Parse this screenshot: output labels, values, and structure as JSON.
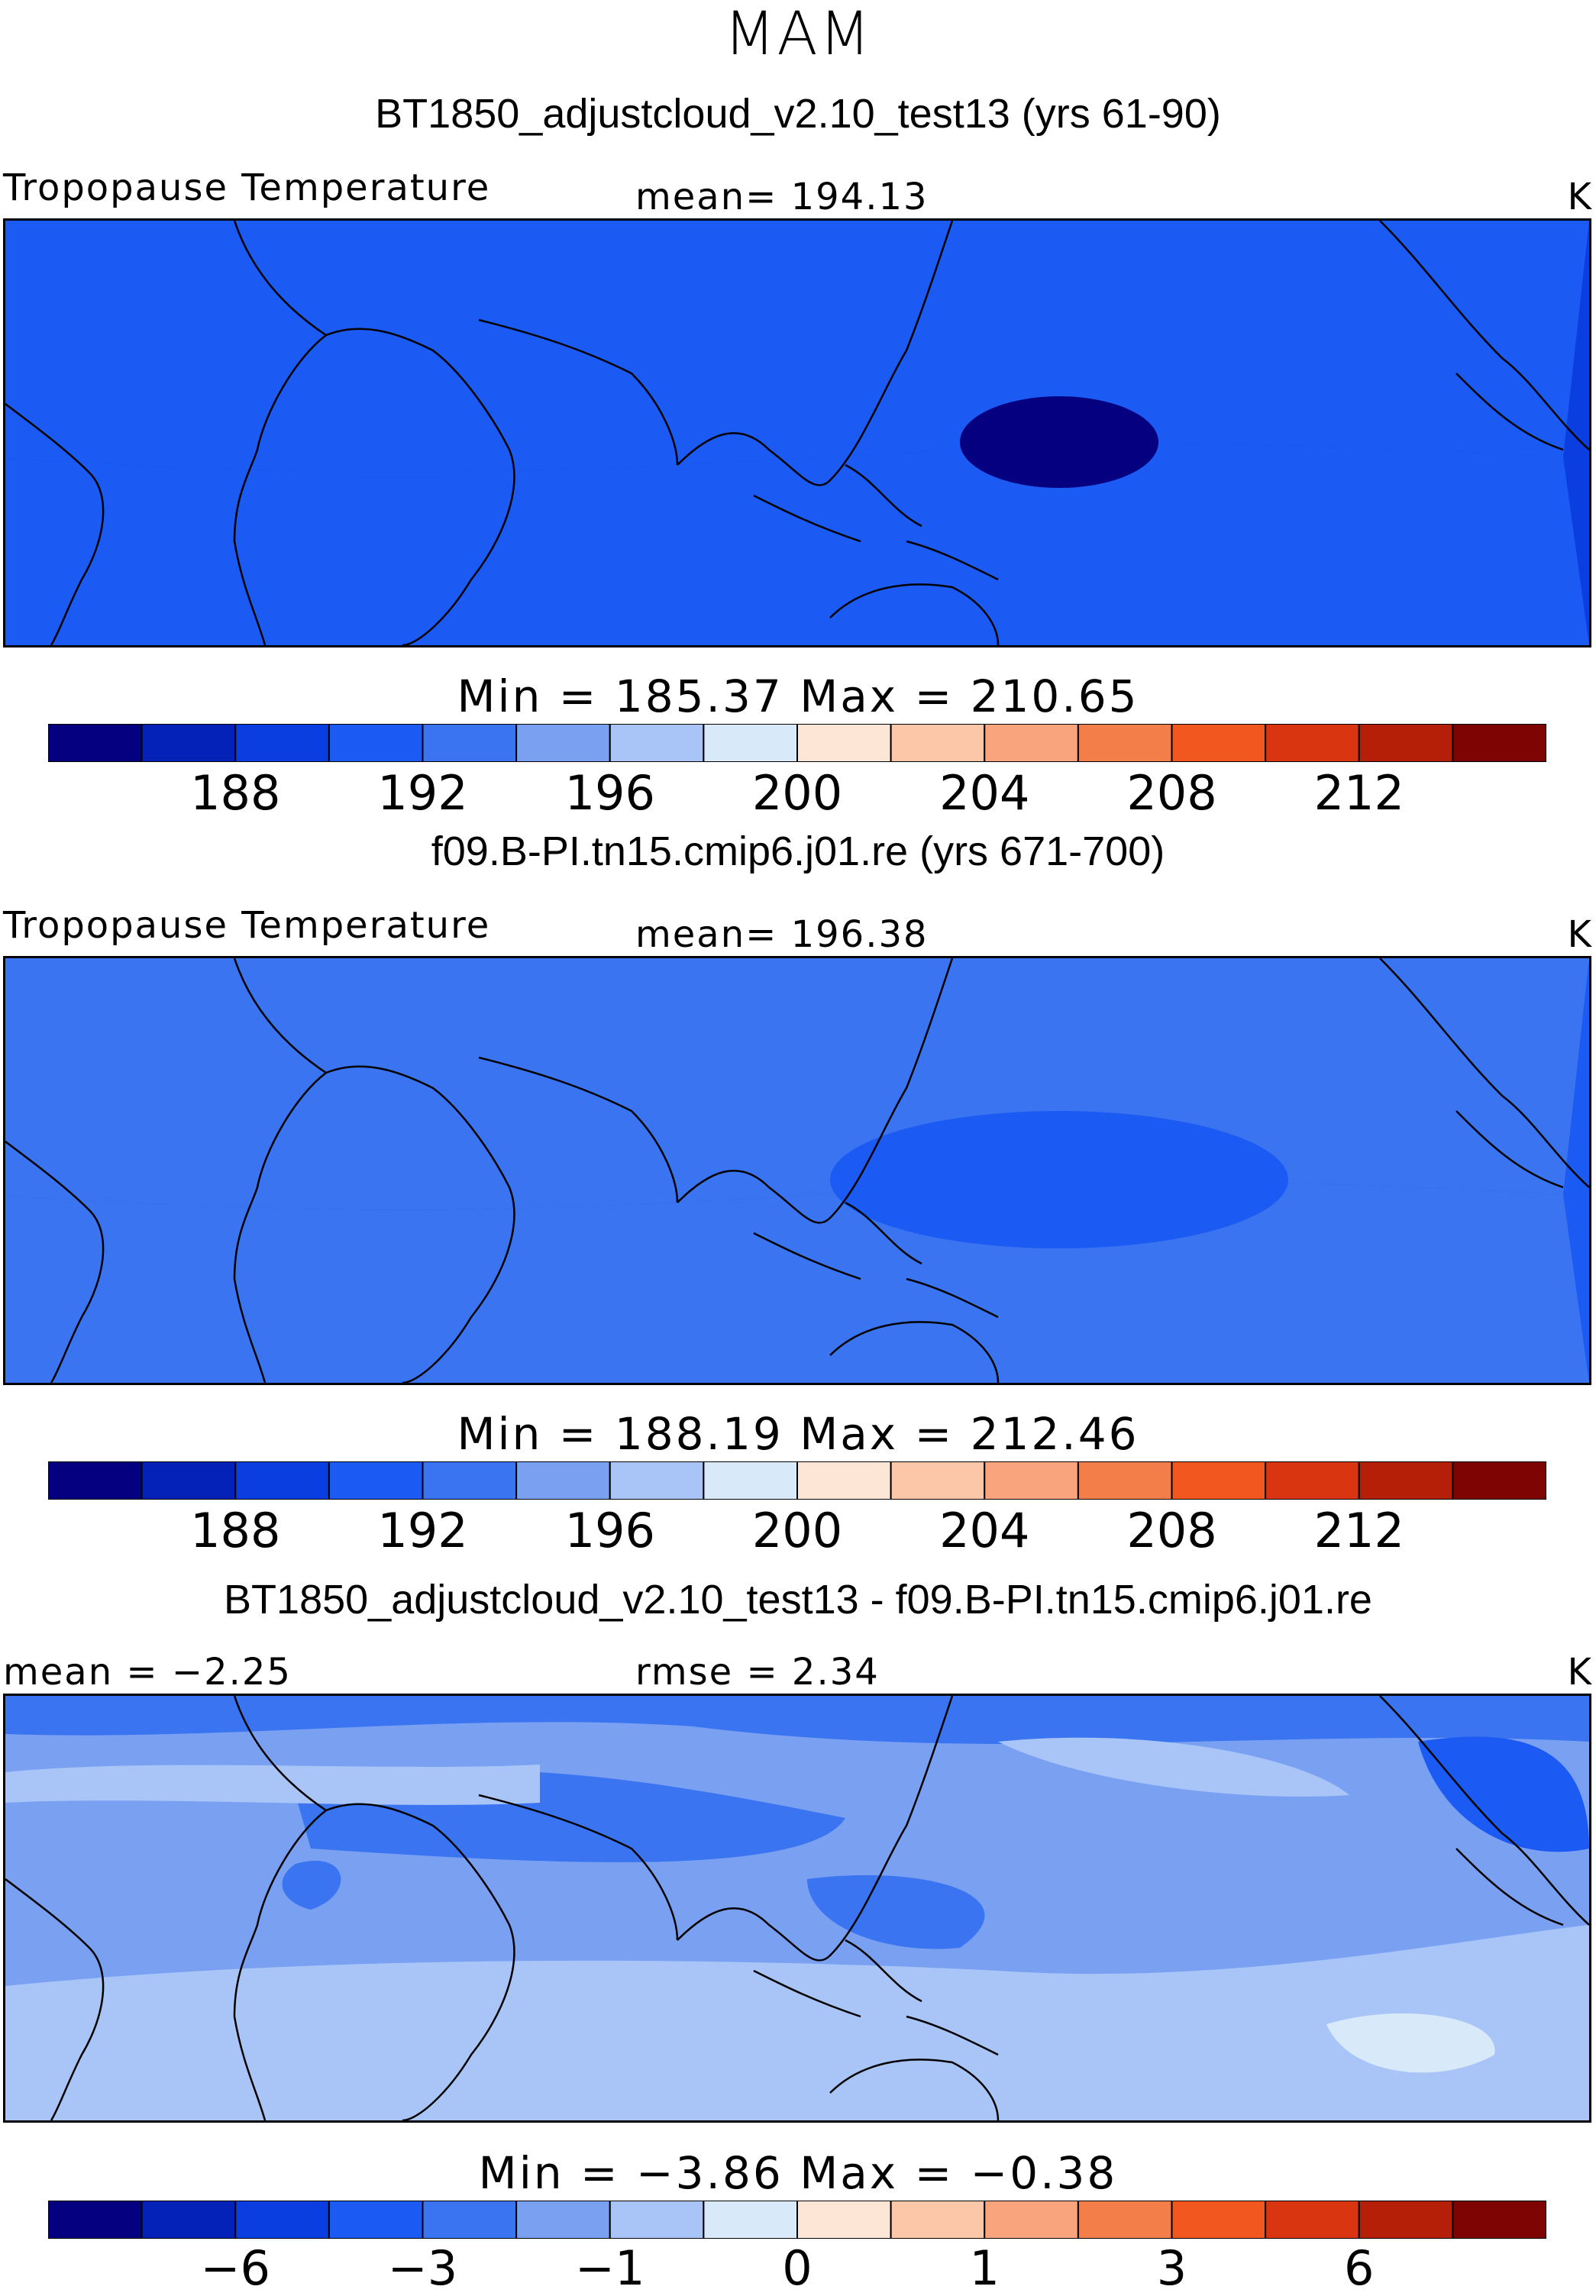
{
  "season": "MAM",
  "panels": [
    {
      "title": "BT1850_adjustcloud_v2.10_test13 (yrs 61-90)",
      "left_label": "Tropopause Temperature",
      "center_label": "mean= 194.13",
      "units": "K",
      "minmax": "Min = 185.37 Max = 210.65",
      "colorbar_ticks": [
        "188",
        "192",
        "196",
        "200",
        "204",
        "208",
        "212"
      ],
      "kind": "abs",
      "color_shift": 0
    },
    {
      "title": "f09.B-PI.tn15.cmip6.j01.re (yrs 671-700)",
      "left_label": "Tropopause Temperature",
      "center_label": "mean= 196.38",
      "units": "K",
      "minmax": "Min = 188.19 Max = 212.46",
      "colorbar_ticks": [
        "188",
        "192",
        "196",
        "200",
        "204",
        "208",
        "212"
      ],
      "kind": "abs",
      "color_shift": 1
    },
    {
      "title": "BT1850_adjustcloud_v2.10_test13 - f09.B-PI.tn15.cmip6.j01.re",
      "left_label": "mean =   −2.25",
      "center_label": "rmse =    2.34",
      "units": "K",
      "minmax": "Min =   −3.86 Max =   −0.38",
      "colorbar_ticks": [
        "−6",
        "−3",
        "−1",
        "0",
        "1",
        "3",
        "6"
      ],
      "kind": "diff",
      "color_shift": 0
    }
  ],
  "colors": {
    "palette": [
      "#04007f",
      "#0422b8",
      "#0a3ee0",
      "#1c5af4",
      "#3a74f0",
      "#7aa0f2",
      "#a9c5f7",
      "#d8e9fa",
      "#fde6d6",
      "#fcc6a9",
      "#f9a47c",
      "#f47e4a",
      "#f2571f",
      "#d93510",
      "#b51f08",
      "#7e0303"
    ]
  },
  "chart_data": [
    {
      "type": "heatmap",
      "title": "BT1850_adjustcloud_v2.10_test13 (yrs 61-90)",
      "variable": "Tropopause Temperature",
      "units": "K",
      "mean": 194.13,
      "min": 185.37,
      "max": 210.65,
      "colorbar_levels": [
        186,
        188,
        190,
        192,
        194,
        196,
        198,
        200,
        202,
        204,
        206,
        208,
        210,
        212,
        214
      ],
      "colorbar_tick_labels": [
        188,
        192,
        196,
        200,
        204,
        208,
        212
      ]
    },
    {
      "type": "heatmap",
      "title": "f09.B-PI.tn15.cmip6.j01.re (yrs 671-700)",
      "variable": "Tropopause Temperature",
      "units": "K",
      "mean": 196.38,
      "min": 188.19,
      "max": 212.46,
      "colorbar_levels": [
        186,
        188,
        190,
        192,
        194,
        196,
        198,
        200,
        202,
        204,
        206,
        208,
        210,
        212,
        214
      ],
      "colorbar_tick_labels": [
        188,
        192,
        196,
        200,
        204,
        208,
        212
      ]
    },
    {
      "type": "heatmap",
      "title": "BT1850_adjustcloud_v2.10_test13 - f09.B-PI.tn15.cmip6.j01.re",
      "units": "K",
      "mean": -2.25,
      "rmse": 2.34,
      "min": -3.86,
      "max": -0.38,
      "colorbar_levels": [
        -8,
        -6,
        -4,
        -3,
        -2,
        -1,
        -0.5,
        0,
        0.5,
        1,
        2,
        3,
        4,
        6,
        8
      ],
      "colorbar_tick_labels": [
        -6,
        -3,
        -1,
        0,
        1,
        3,
        6
      ]
    }
  ]
}
